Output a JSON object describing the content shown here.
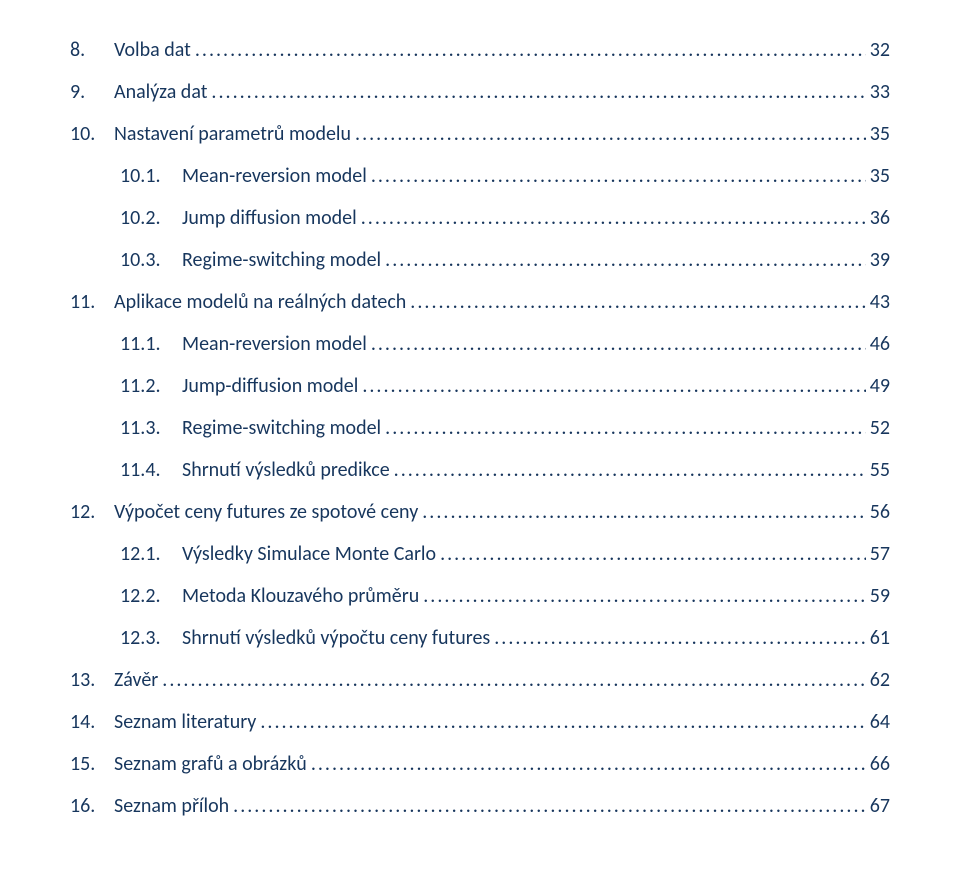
{
  "colors": {
    "text": "#17365d",
    "background": "#ffffff"
  },
  "typography": {
    "font_family": "Calibri",
    "font_size_pt": 15,
    "font_weight": "normal"
  },
  "toc": [
    {
      "level": 1,
      "num": "8.",
      "label": "Volba dat",
      "page": "32"
    },
    {
      "level": 1,
      "num": "9.",
      "label": "Analýza dat",
      "page": "33"
    },
    {
      "level": 1,
      "num": "10.",
      "label": "Nastavení parametrů modelu",
      "page": "35"
    },
    {
      "level": 2,
      "num": "10.1.",
      "label": "Mean-reversion model",
      "page": "35"
    },
    {
      "level": 2,
      "num": "10.2.",
      "label": "Jump diffusion model",
      "page": "36"
    },
    {
      "level": 2,
      "num": "10.3.",
      "label": "Regime-switching model",
      "page": "39"
    },
    {
      "level": 1,
      "num": "11.",
      "label": "Aplikace modelů na reálných datech",
      "page": "43"
    },
    {
      "level": 2,
      "num": "11.1.",
      "label": "Mean-reversion model",
      "page": "46"
    },
    {
      "level": 2,
      "num": "11.2.",
      "label": "Jump-diffusion model",
      "page": "49"
    },
    {
      "level": 2,
      "num": "11.3.",
      "label": "Regime-switching model",
      "page": "52"
    },
    {
      "level": 2,
      "num": "11.4.",
      "label": "Shrnutí výsledků predikce",
      "page": "55"
    },
    {
      "level": 1,
      "num": "12.",
      "label": "Výpočet ceny futures ze spotové ceny",
      "page": "56"
    },
    {
      "level": 2,
      "num": "12.1.",
      "label": "Výsledky Simulace Monte Carlo",
      "page": "57"
    },
    {
      "level": 2,
      "num": "12.2.",
      "label": "Metoda Klouzavého průměru",
      "page": "59"
    },
    {
      "level": 2,
      "num": "12.3.",
      "label": "Shrnutí výsledků výpočtu ceny futures",
      "page": "61"
    },
    {
      "level": 1,
      "num": "13.",
      "label": "Závěr",
      "page": "62"
    },
    {
      "level": 1,
      "num": "14.",
      "label": "Seznam literatury",
      "page": "64"
    },
    {
      "level": 1,
      "num": "15.",
      "label": "Seznam grafů a obrázků",
      "page": "66"
    },
    {
      "level": 1,
      "num": "16.",
      "label": "Seznam příloh",
      "page": "67"
    }
  ]
}
